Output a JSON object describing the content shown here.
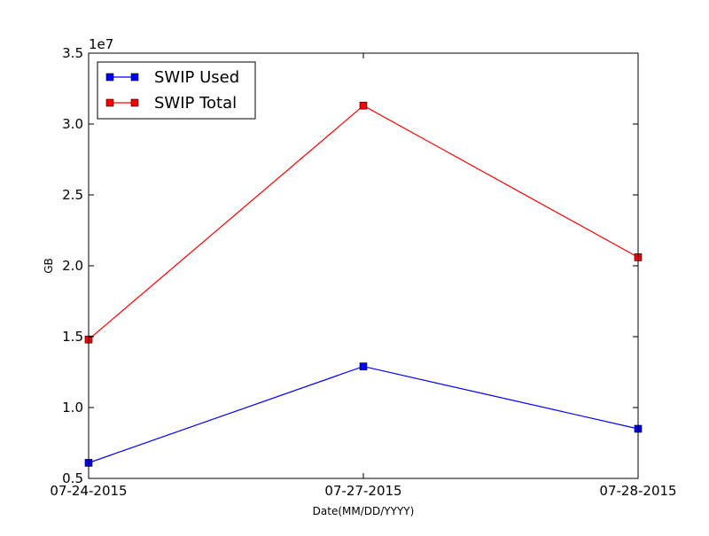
{
  "chart_data": {
    "type": "line",
    "title": "",
    "xlabel": "Date(MM/DD/YYYY)",
    "ylabel": "GB",
    "x": [
      "07-24-2015",
      "07-27-2015",
      "07-28-2015"
    ],
    "ylim": [
      5000000,
      35000000
    ],
    "y_ticks": [
      5000000,
      10000000,
      15000000,
      20000000,
      25000000,
      30000000,
      35000000
    ],
    "y_tick_labels": [
      "0.5",
      "1.0",
      "1.5",
      "2.0",
      "2.5",
      "3.0",
      "3.5"
    ],
    "y_offset_label": "1e7",
    "grid": false,
    "legend_position": "upper-left",
    "series": [
      {
        "name": "SWIP Used",
        "color": "#0000ff",
        "marker": "square",
        "values": [
          6100000,
          12900000,
          8500000
        ]
      },
      {
        "name": "SWIP Total",
        "color": "#ff0000",
        "marker": "square",
        "values": [
          14800000,
          31300000,
          20600000
        ]
      }
    ]
  }
}
